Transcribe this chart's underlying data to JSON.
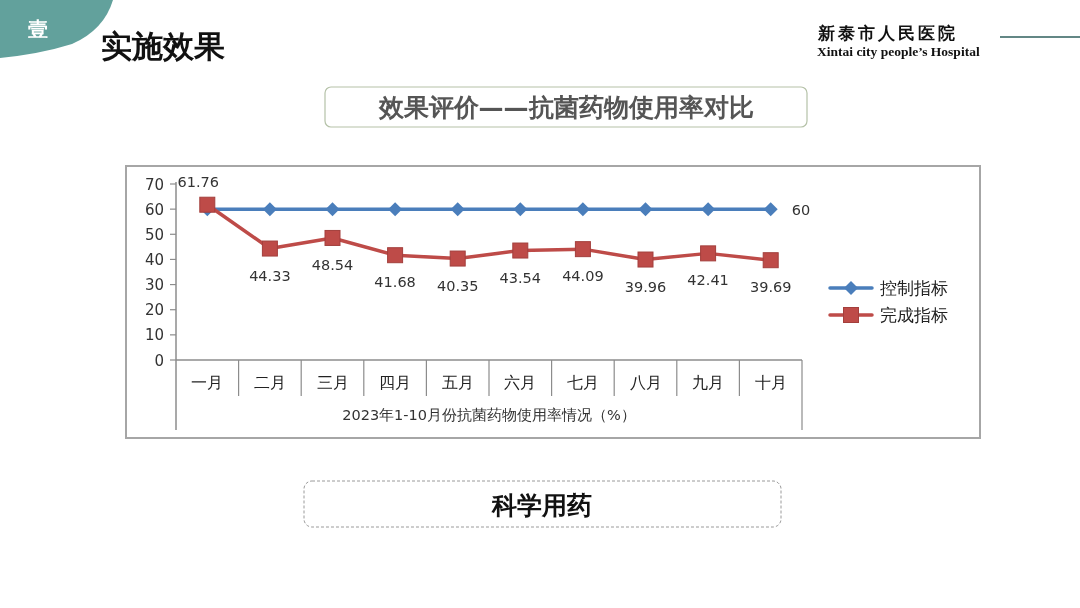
{
  "chart_data": {
    "type": "line",
    "title": "实施效果",
    "subtitle": "效果评价——抗菌药物使用率对比",
    "xlabel": "2023年1-10月份抗菌药物使用率情况（%）",
    "annotations": [
      "壹",
      "新泰市人民医院",
      "Xintai city people’s Hospital",
      "科学用药"
    ],
    "categories": [
      "一月",
      "二月",
      "三月",
      "四月",
      "五月",
      "六月",
      "七月",
      "八月",
      "九月",
      "十月"
    ],
    "series": [
      {
        "name": "控制指标",
        "color": "#4a7ebb",
        "marker": "diamond",
        "values": [
          60,
          60,
          60,
          60,
          60,
          60,
          60,
          60,
          60,
          60
        ],
        "value_labels": [
          null,
          null,
          null,
          null,
          null,
          null,
          null,
          null,
          null,
          "60"
        ]
      },
      {
        "name": "完成指标",
        "color": "#be4b48",
        "marker": "square",
        "values": [
          61.76,
          44.33,
          48.54,
          41.68,
          40.35,
          43.54,
          44.09,
          39.96,
          42.41,
          39.69
        ],
        "value_labels": [
          "61.76",
          "44.33",
          "48.54",
          "41.68",
          "40.35",
          "43.54",
          "44.09",
          "39.96",
          "42.41",
          "39.69"
        ]
      }
    ],
    "ylim": [
      0,
      70
    ],
    "yticks": [
      0,
      10,
      20,
      30,
      40,
      50,
      60,
      70
    ],
    "grid": false,
    "legend": "right",
    "line_style": "solid"
  }
}
